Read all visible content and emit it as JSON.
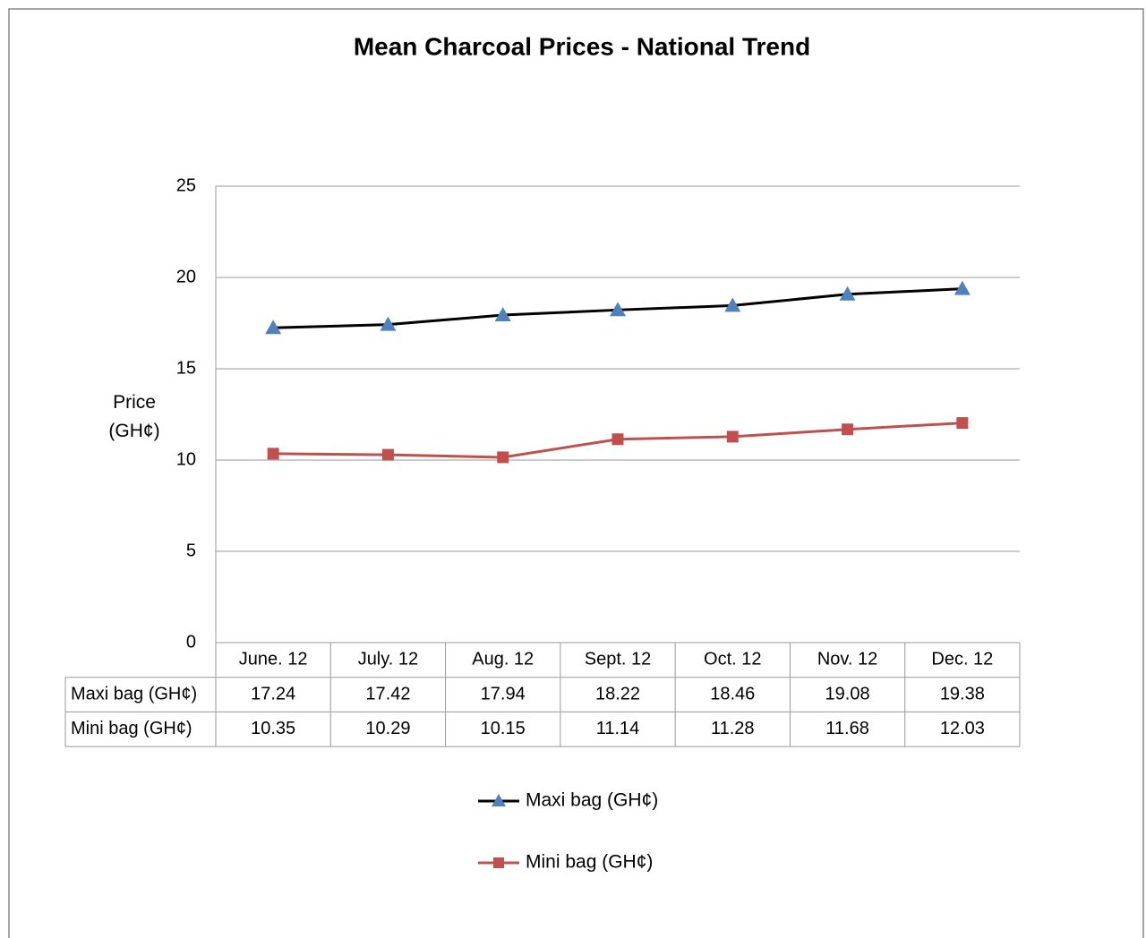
{
  "chart_data": {
    "type": "line",
    "title": "Mean Charcoal Prices - National Trend",
    "ylabel": "Price (GH¢)",
    "categories": [
      "June. 12",
      "July. 12",
      "Aug. 12",
      "Sept. 12",
      "Oct. 12",
      "Nov. 12",
      "Dec. 12"
    ],
    "series": [
      {
        "name": "Maxi bag (GH¢)",
        "color": "#000000",
        "marker": "triangle",
        "marker_color": "#4f81bd",
        "values": [
          17.24,
          17.42,
          17.94,
          18.22,
          18.46,
          19.08,
          19.38
        ]
      },
      {
        "name": "Mini bag (GH¢)",
        "color": "#c0504d",
        "marker": "square",
        "marker_color": "#c0504d",
        "values": [
          10.35,
          10.29,
          10.15,
          11.14,
          11.28,
          11.68,
          12.03
        ]
      }
    ],
    "ylim": [
      0,
      25
    ],
    "yticks": [
      0,
      5,
      10,
      15,
      20,
      25
    ],
    "grid": true,
    "legend": "bottom"
  }
}
